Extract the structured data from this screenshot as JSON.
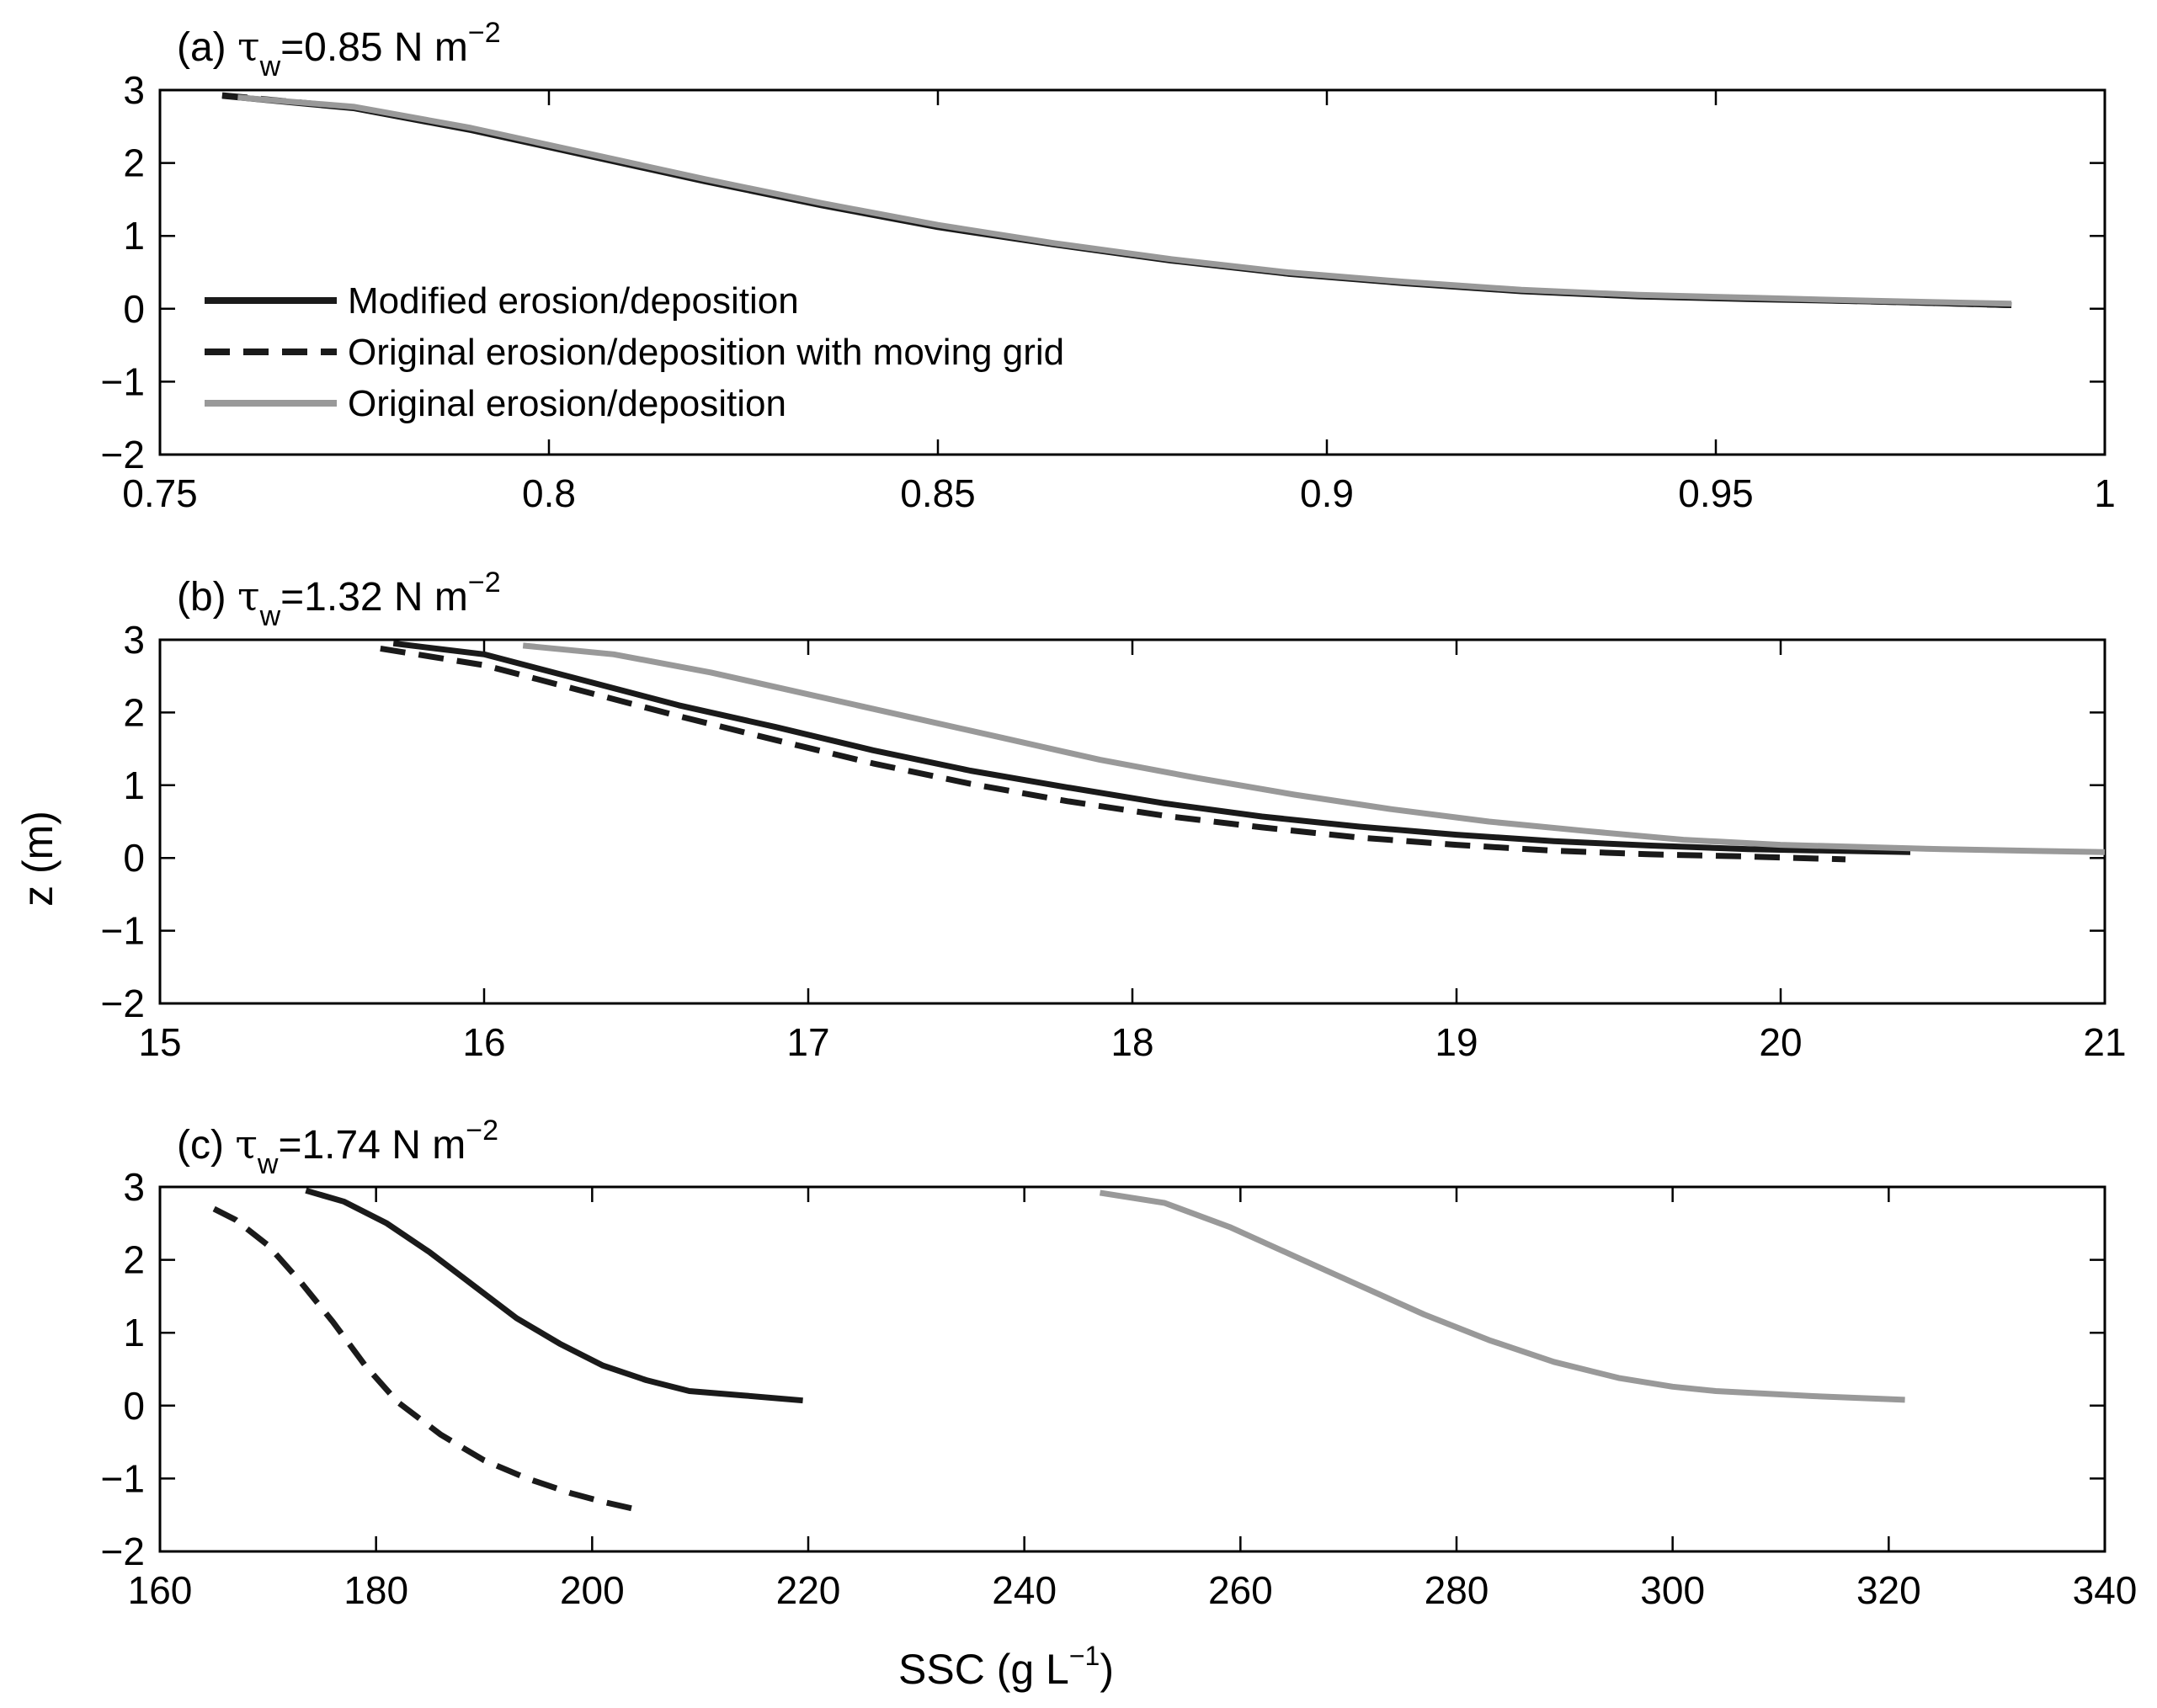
{
  "figure": {
    "ylabel": "z (m)",
    "xlabel": "SSC (g L",
    "xlabel_exp": "−1",
    "xlabel_close": ")"
  },
  "legend": [
    {
      "label": "Modified erosion/deposition",
      "color": "#1a1a1a",
      "style": "solid"
    },
    {
      "label": "Original erosion/deposition with moving grid",
      "color": "#1a1a1a",
      "style": "dashed"
    },
    {
      "label": "Original erosion/deposition",
      "color": "#999999",
      "style": "solid"
    }
  ],
  "colors": {
    "modified": "#1a1a1a",
    "moving_grid": "#1a1a1a",
    "original": "#999999"
  },
  "chart_data": [
    {
      "type": "line",
      "title_prefix": "(a) ",
      "title_tau": "τ",
      "title_sub": "w",
      "title_value": "=0.85 N m",
      "title_exp": "−2",
      "xlim": [
        0.75,
        1.0
      ],
      "ylim": [
        -2,
        3
      ],
      "xticks": [
        0.75,
        0.8,
        0.85,
        0.9,
        0.95,
        1
      ],
      "xtick_labels": [
        "0.75",
        "0.8",
        "0.85",
        "0.9",
        "0.95",
        "1"
      ],
      "yticks": [
        3,
        2,
        1,
        0,
        -1,
        -2
      ],
      "ytick_labels": [
        "3",
        "2",
        "1",
        "0",
        "−1",
        "−2"
      ],
      "series": [
        {
          "name": "Modified erosion/deposition",
          "key": "modified",
          "points": [
            [
              0.758,
              2.92
            ],
            [
              0.775,
              2.75
            ],
            [
              0.79,
              2.45
            ],
            [
              0.805,
              2.1
            ],
            [
              0.82,
              1.75
            ],
            [
              0.835,
              1.42
            ],
            [
              0.85,
              1.12
            ],
            [
              0.865,
              0.88
            ],
            [
              0.88,
              0.66
            ],
            [
              0.895,
              0.48
            ],
            [
              0.91,
              0.35
            ],
            [
              0.925,
              0.24
            ],
            [
              0.94,
              0.17
            ],
            [
              0.955,
              0.13
            ],
            [
              0.97,
              0.1
            ],
            [
              0.988,
              0.05
            ]
          ]
        },
        {
          "name": "Original erosion/deposition with moving grid",
          "key": "moving_grid",
          "points": [
            [
              0.758,
              2.93
            ],
            [
              0.775,
              2.76
            ],
            [
              0.79,
              2.46
            ],
            [
              0.805,
              2.11
            ],
            [
              0.82,
              1.76
            ],
            [
              0.835,
              1.43
            ],
            [
              0.85,
              1.13
            ],
            [
              0.865,
              0.89
            ],
            [
              0.88,
              0.67
            ],
            [
              0.895,
              0.49
            ],
            [
              0.91,
              0.36
            ],
            [
              0.925,
              0.25
            ],
            [
              0.94,
              0.18
            ],
            [
              0.955,
              0.14
            ],
            [
              0.97,
              0.1
            ],
            [
              0.988,
              0.05
            ]
          ]
        },
        {
          "name": "Original erosion/deposition",
          "key": "original",
          "points": [
            [
              0.76,
              2.9
            ],
            [
              0.775,
              2.77
            ],
            [
              0.79,
              2.48
            ],
            [
              0.805,
              2.13
            ],
            [
              0.82,
              1.78
            ],
            [
              0.835,
              1.45
            ],
            [
              0.85,
              1.15
            ],
            [
              0.865,
              0.9
            ],
            [
              0.88,
              0.68
            ],
            [
              0.895,
              0.5
            ],
            [
              0.91,
              0.37
            ],
            [
              0.925,
              0.26
            ],
            [
              0.94,
              0.19
            ],
            [
              0.955,
              0.15
            ],
            [
              0.97,
              0.11
            ],
            [
              0.988,
              0.07
            ]
          ]
        }
      ]
    },
    {
      "type": "line",
      "title_prefix": "(b) ",
      "title_tau": "τ",
      "title_sub": "w",
      "title_value": "=1.32 N m",
      "title_exp": "−2",
      "xlim": [
        15,
        21
      ],
      "ylim": [
        -2,
        3
      ],
      "xticks": [
        15,
        16,
        17,
        18,
        19,
        20,
        21
      ],
      "xtick_labels": [
        "15",
        "16",
        "17",
        "18",
        "19",
        "20",
        "21"
      ],
      "yticks": [
        3,
        2,
        1,
        0,
        -1,
        -2
      ],
      "ytick_labels": [
        "3",
        "2",
        "1",
        "0",
        "−1",
        "−2"
      ],
      "series": [
        {
          "name": "Modified erosion/deposition",
          "key": "modified",
          "points": [
            [
              15.72,
              2.95
            ],
            [
              16.0,
              2.8
            ],
            [
              16.3,
              2.45
            ],
            [
              16.6,
              2.1
            ],
            [
              16.9,
              1.8
            ],
            [
              17.2,
              1.48
            ],
            [
              17.5,
              1.2
            ],
            [
              17.8,
              0.97
            ],
            [
              18.1,
              0.75
            ],
            [
              18.4,
              0.57
            ],
            [
              18.7,
              0.43
            ],
            [
              19.0,
              0.32
            ],
            [
              19.3,
              0.23
            ],
            [
              19.6,
              0.17
            ],
            [
              19.9,
              0.12
            ],
            [
              20.4,
              0.08
            ]
          ]
        },
        {
          "name": "Original erosion/deposition with moving grid",
          "key": "moving_grid",
          "points": [
            [
              15.68,
              2.88
            ],
            [
              16.0,
              2.65
            ],
            [
              16.3,
              2.3
            ],
            [
              16.6,
              1.95
            ],
            [
              16.9,
              1.62
            ],
            [
              17.2,
              1.3
            ],
            [
              17.5,
              1.02
            ],
            [
              17.8,
              0.78
            ],
            [
              18.1,
              0.58
            ],
            [
              18.4,
              0.42
            ],
            [
              18.7,
              0.28
            ],
            [
              19.0,
              0.18
            ],
            [
              19.3,
              0.1
            ],
            [
              19.6,
              0.05
            ],
            [
              19.9,
              0.02
            ],
            [
              20.2,
              -0.02
            ]
          ]
        },
        {
          "name": "Original erosion/deposition",
          "key": "original",
          "points": [
            [
              16.12,
              2.92
            ],
            [
              16.4,
              2.8
            ],
            [
              16.7,
              2.55
            ],
            [
              17.0,
              2.25
            ],
            [
              17.3,
              1.95
            ],
            [
              17.6,
              1.65
            ],
            [
              17.9,
              1.35
            ],
            [
              18.2,
              1.1
            ],
            [
              18.5,
              0.87
            ],
            [
              18.8,
              0.67
            ],
            [
              19.1,
              0.5
            ],
            [
              19.4,
              0.37
            ],
            [
              19.7,
              0.25
            ],
            [
              20.0,
              0.18
            ],
            [
              20.5,
              0.12
            ],
            [
              21.0,
              0.08
            ]
          ]
        }
      ]
    },
    {
      "type": "line",
      "title_prefix": "(c) ",
      "title_tau": "τ",
      "title_sub": "w",
      "title_value": "=1.74 N m",
      "title_exp": "−2",
      "xlim": [
        160,
        340
      ],
      "ylim": [
        -2,
        3
      ],
      "xticks": [
        160,
        180,
        200,
        220,
        240,
        260,
        280,
        300,
        320,
        340
      ],
      "xtick_labels": [
        "160",
        "180",
        "200",
        "220",
        "240",
        "260",
        "280",
        "300",
        "320",
        "340"
      ],
      "yticks": [
        3,
        2,
        1,
        0,
        -1,
        -2
      ],
      "ytick_labels": [
        "3",
        "2",
        "1",
        "0",
        "−1",
        "−2"
      ],
      "series": [
        {
          "name": "Modified erosion/deposition",
          "key": "modified",
          "points": [
            [
              173.5,
              2.95
            ],
            [
              177,
              2.8
            ],
            [
              181,
              2.5
            ],
            [
              185,
              2.1
            ],
            [
              189,
              1.65
            ],
            [
              193,
              1.2
            ],
            [
              197,
              0.85
            ],
            [
              201,
              0.55
            ],
            [
              205,
              0.35
            ],
            [
              209,
              0.2
            ],
            [
              214,
              0.14
            ],
            [
              219.5,
              0.07
            ]
          ]
        },
        {
          "name": "Original erosion/deposition with moving grid",
          "key": "moving_grid",
          "points": [
            [
              165,
              2.7
            ],
            [
              167,
              2.55
            ],
            [
              170,
              2.2
            ],
            [
              173,
              1.7
            ],
            [
              176,
              1.15
            ],
            [
              179,
              0.55
            ],
            [
              182,
              0.05
            ],
            [
              186,
              -0.4
            ],
            [
              190,
              -0.75
            ],
            [
              194,
              -1.0
            ],
            [
              198,
              -1.2
            ],
            [
              201,
              -1.32
            ],
            [
              204,
              -1.42
            ]
          ]
        },
        {
          "name": "Original erosion/deposition",
          "key": "original",
          "points": [
            [
              247,
              2.92
            ],
            [
              253,
              2.78
            ],
            [
              259,
              2.45
            ],
            [
              265,
              2.05
            ],
            [
              271,
              1.65
            ],
            [
              277,
              1.25
            ],
            [
              283,
              0.9
            ],
            [
              289,
              0.6
            ],
            [
              295,
              0.38
            ],
            [
              300,
              0.26
            ],
            [
              304,
              0.2
            ],
            [
              313,
              0.13
            ],
            [
              321.5,
              0.08
            ]
          ]
        }
      ]
    }
  ]
}
